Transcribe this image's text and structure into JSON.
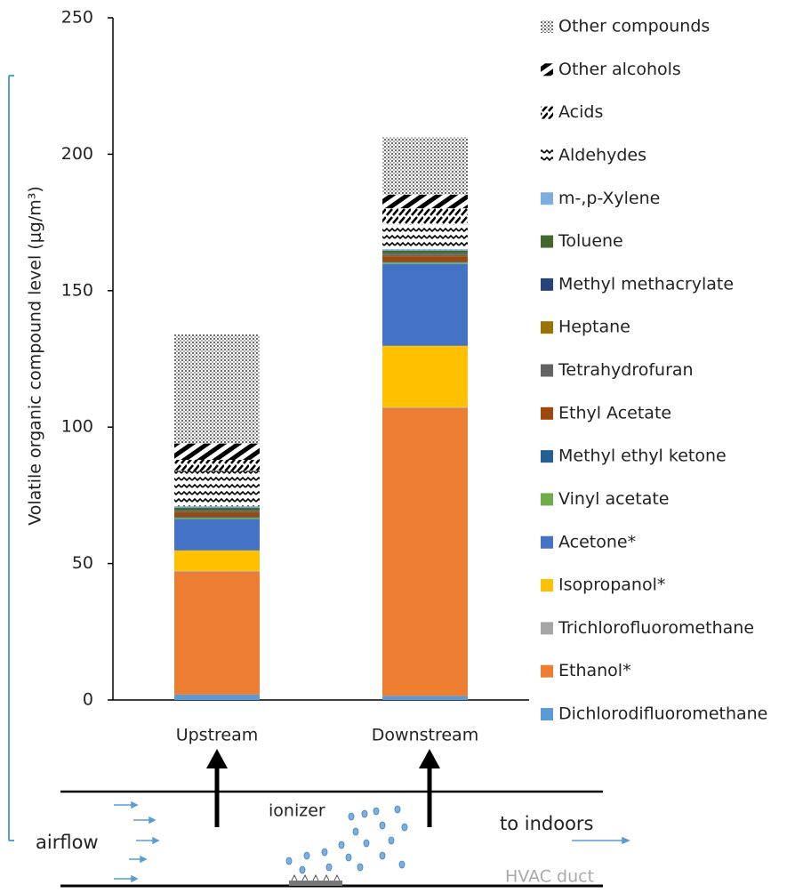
{
  "chart_data": {
    "type": "stacked_bar",
    "y_label": "Volatile organic compound level (μg/m³)",
    "categories": [
      "Upstream",
      "Downstream"
    ],
    "ylim": [
      0,
      250
    ],
    "yticks": [
      0,
      50,
      100,
      150,
      200,
      250
    ],
    "series": [
      {
        "name": "Dichlorodifluoromethane",
        "color": "#5b9bd5",
        "values": [
          2,
          1.5
        ]
      },
      {
        "name": "Ethanol*",
        "color": "#ed7d31",
        "values": [
          45,
          105.5
        ]
      },
      {
        "name": "Trichlorofluoromethane",
        "color": "#a5a5a5",
        "values": [
          0.3,
          0.3
        ]
      },
      {
        "name": "Isopropanol*",
        "color": "#ffc000",
        "values": [
          7.5,
          22.5
        ]
      },
      {
        "name": "Acetone*",
        "color": "#4472c4",
        "values": [
          11.5,
          30
        ]
      },
      {
        "name": "Vinyl acetate",
        "color": "#70ad47",
        "values": [
          0.5,
          0.5
        ]
      },
      {
        "name": "Methyl ethyl ketone",
        "color": "#255e91",
        "values": [
          0.3,
          0.3
        ]
      },
      {
        "name": "Ethyl Acetate",
        "color": "#9e480e",
        "values": [
          1.5,
          2
        ]
      },
      {
        "name": "Tetrahydrofuran",
        "color": "#636363",
        "values": [
          0.5,
          0.5
        ]
      },
      {
        "name": "Heptane",
        "color": "#997300",
        "values": [
          0.3,
          0.3
        ]
      },
      {
        "name": "Methyl methacrylate",
        "color": "#264478",
        "values": [
          0.3,
          0.3
        ]
      },
      {
        "name": "Toluene",
        "color": "#43682b",
        "values": [
          0.8,
          1
        ]
      },
      {
        "name": "m-,p-Xylene",
        "color": "#7cafdd",
        "values": [
          0.5,
          0.5
        ]
      },
      {
        "name": "Aldehydes",
        "color": "#000000",
        "pattern": "waves",
        "values": [
          13,
          9
        ]
      },
      {
        "name": "Acids",
        "color": "#000000",
        "pattern": "dashes",
        "values": [
          4,
          6
        ]
      },
      {
        "name": "Other alcohols",
        "color": "#000000",
        "pattern": "stripes",
        "values": [
          6,
          5
        ]
      },
      {
        "name": "Other compounds",
        "color": "#000000",
        "pattern": "dots",
        "values": [
          40,
          21
        ]
      }
    ]
  },
  "diagram": {
    "labels": [
      "airflow",
      "ionizer",
      "to indoors",
      "HVAC duct"
    ]
  }
}
